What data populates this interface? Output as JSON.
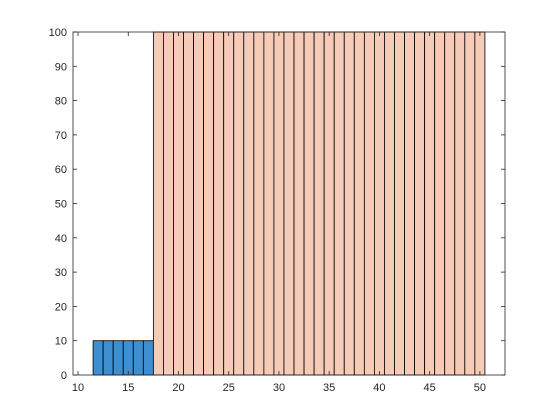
{
  "chart_data": {
    "type": "bar",
    "title": "",
    "xlabel": "",
    "ylabel": "",
    "xlim": [
      9.5,
      52.5
    ],
    "ylim": [
      0,
      100
    ],
    "xticks": [
      10,
      15,
      20,
      25,
      30,
      35,
      40,
      45,
      50
    ],
    "yticks": [
      0,
      10,
      20,
      30,
      40,
      50,
      60,
      70,
      80,
      90,
      100
    ],
    "grid": false,
    "legend": "none",
    "series": [
      {
        "color": "#3d8fd1",
        "x": [
          12,
          13,
          14,
          15,
          16,
          17
        ],
        "values": [
          10,
          10,
          10,
          10,
          10,
          10
        ]
      },
      {
        "color": "#f6ccb8",
        "x": [
          18,
          19,
          20,
          21,
          22,
          23,
          24,
          25,
          26,
          27,
          28,
          29,
          30,
          31,
          32,
          33,
          34,
          35,
          36,
          37,
          38,
          39,
          40,
          41,
          42,
          43,
          44,
          45,
          46,
          47,
          48,
          49,
          50
        ],
        "values": [
          100,
          100,
          100,
          100,
          100,
          100,
          100,
          100,
          100,
          100,
          100,
          100,
          100,
          100,
          100,
          100,
          100,
          100,
          100,
          100,
          100,
          100,
          100,
          100,
          100,
          100,
          100,
          100,
          100,
          100,
          100,
          100,
          100
        ]
      }
    ]
  }
}
